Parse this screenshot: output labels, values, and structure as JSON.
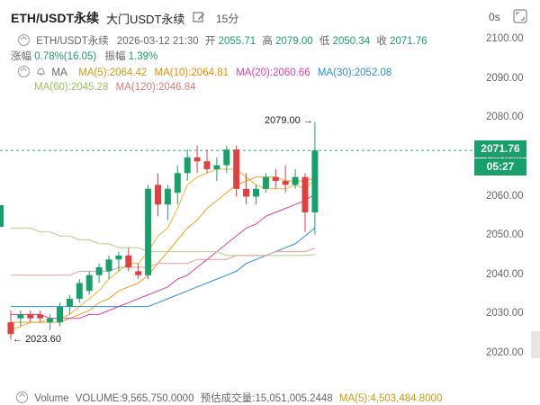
{
  "header": {
    "title": "ETH/USDT永续",
    "subtitle": "大门USDT永续",
    "interval": "15分",
    "countdown": "0s"
  },
  "ohlc": {
    "symbol": "ETH/USDT永续",
    "datetime": "2026-03-12 21:30",
    "open_label": "开",
    "open": "2055.71",
    "high_label": "高",
    "high": "2079.00",
    "low_label": "低",
    "low": "2050.34",
    "close_label": "收",
    "close": "2071.76",
    "change_label": "涨幅",
    "change": "0.78%(16.05)",
    "amplitude_label": "振幅",
    "amplitude": "1.39%"
  },
  "ma": {
    "label": "MA",
    "ma5": "MA(5):2064.42",
    "ma10": "MA(10):2064.81",
    "ma20": "MA(20):2060.66",
    "ma30": "MA(30):2052.08",
    "ma60": "MA(60):2045.28",
    "ma120": "MA(120):2046.84"
  },
  "colors": {
    "up": "#18a06a",
    "down": "#e04040",
    "ma5": "#f0b429",
    "ma10": "#f0a020",
    "ma20": "#e040a0",
    "ma30": "#2a8fd8",
    "ma60": "#b0d080",
    "ma120": "#e89a9a"
  },
  "axis": {
    "ticks": [
      "2100.00",
      "2090.00",
      "2080.00",
      "2070.00",
      "2060.00",
      "2050.00",
      "2040.00",
      "2030.00",
      "2020.00"
    ]
  },
  "last_price": "2071.76",
  "time_left": "05:27",
  "annotations": {
    "high": "2079.00",
    "low": "2023.60"
  },
  "volume": {
    "label": "Volume",
    "volume": "VOLUME:9,565,750.0000",
    "est": "预估成交量:15,051,005.2448",
    "ma5": "MA(5):4,503,484.8000"
  },
  "chart_data": {
    "type": "candlestick",
    "ylim": [
      2020,
      2100
    ],
    "candles": [
      {
        "o": 2028,
        "h": 2031,
        "l": 2023.6,
        "c": 2025
      },
      {
        "o": 2029,
        "h": 2031,
        "l": 2027,
        "c": 2030
      },
      {
        "o": 2030,
        "h": 2031,
        "l": 2028,
        "c": 2029
      },
      {
        "o": 2030,
        "h": 2031,
        "l": 2028,
        "c": 2029
      },
      {
        "o": 2028,
        "h": 2030,
        "l": 2026,
        "c": 2029
      },
      {
        "o": 2028,
        "h": 2033,
        "l": 2027,
        "c": 2032
      },
      {
        "o": 2032,
        "h": 2035,
        "l": 2030,
        "c": 2034
      },
      {
        "o": 2034,
        "h": 2039,
        "l": 2033,
        "c": 2038
      },
      {
        "o": 2036,
        "h": 2041,
        "l": 2035,
        "c": 2040
      },
      {
        "o": 2040,
        "h": 2043,
        "l": 2038,
        "c": 2042
      },
      {
        "o": 2041,
        "h": 2045,
        "l": 2039,
        "c": 2044
      },
      {
        "o": 2044,
        "h": 2046,
        "l": 2041,
        "c": 2045
      },
      {
        "o": 2045,
        "h": 2047,
        "l": 2041,
        "c": 2042
      },
      {
        "o": 2041,
        "h": 2043,
        "l": 2039,
        "c": 2040
      },
      {
        "o": 2040,
        "h": 2063,
        "l": 2039,
        "c": 2062
      },
      {
        "o": 2063,
        "h": 2066,
        "l": 2055,
        "c": 2058
      },
      {
        "o": 2058,
        "h": 2063,
        "l": 2054,
        "c": 2062
      },
      {
        "o": 2061,
        "h": 2068,
        "l": 2058,
        "c": 2066
      },
      {
        "o": 2066,
        "h": 2072,
        "l": 2064,
        "c": 2070
      },
      {
        "o": 2070,
        "h": 2073,
        "l": 2066,
        "c": 2069
      },
      {
        "o": 2069,
        "h": 2072,
        "l": 2066,
        "c": 2067
      },
      {
        "o": 2067,
        "h": 2070,
        "l": 2064,
        "c": 2068
      },
      {
        "o": 2068,
        "h": 2073,
        "l": 2066,
        "c": 2072
      },
      {
        "o": 2072,
        "h": 2073,
        "l": 2060,
        "c": 2062
      },
      {
        "o": 2062,
        "h": 2066,
        "l": 2058,
        "c": 2060
      },
      {
        "o": 2060,
        "h": 2063,
        "l": 2058,
        "c": 2062
      },
      {
        "o": 2062,
        "h": 2066,
        "l": 2061,
        "c": 2065
      },
      {
        "o": 2065,
        "h": 2067,
        "l": 2062,
        "c": 2064
      },
      {
        "o": 2064,
        "h": 2068,
        "l": 2061,
        "c": 2063
      },
      {
        "o": 2063,
        "h": 2067,
        "l": 2062,
        "c": 2065
      },
      {
        "o": 2065,
        "h": 2066,
        "l": 2051,
        "c": 2056
      },
      {
        "o": 2056,
        "h": 2079,
        "l": 2050.34,
        "c": 2071.76
      }
    ],
    "ma": {
      "ma5": [
        2026,
        2027,
        2028,
        2028,
        2029,
        2029,
        2030,
        2032,
        2034,
        2036,
        2039,
        2041,
        2043,
        2043,
        2046,
        2050,
        2052,
        2057,
        2063,
        2065,
        2066,
        2067,
        2067,
        2067,
        2065,
        2063,
        2062,
        2062,
        2062,
        2063,
        2062,
        2064.42
      ],
      "ma10": [
        2028,
        2028,
        2028,
        2028,
        2028,
        2028,
        2029,
        2030,
        2031,
        2033,
        2034,
        2036,
        2037,
        2038,
        2040,
        2043,
        2046,
        2049,
        2052,
        2054,
        2057,
        2059,
        2061,
        2063,
        2064,
        2065,
        2065,
        2065,
        2064,
        2064,
        2064,
        2064.81
      ],
      "ma20": [
        2030,
        2030,
        2030,
        2030,
        2029,
        2029,
        2029,
        2029,
        2030,
        2030,
        2031,
        2032,
        2033,
        2034,
        2035,
        2036,
        2037,
        2039,
        2040,
        2042,
        2044,
        2046,
        2048,
        2050,
        2052,
        2053,
        2055,
        2056,
        2057,
        2058,
        2059,
        2060.66
      ],
      "ma30": [
        2032,
        2032,
        2032,
        2032,
        2032,
        2032,
        2032,
        2032,
        2032,
        2032,
        2032,
        2032,
        2032,
        2032,
        2032,
        2033,
        2034,
        2035,
        2036,
        2037,
        2038,
        2039,
        2040,
        2041,
        2043,
        2044,
        2045,
        2046,
        2047,
        2048,
        2050,
        2052.08
      ],
      "ma60": [
        2052,
        2052,
        2052,
        2051,
        2051,
        2050,
        2050,
        2049,
        2049,
        2048,
        2048,
        2047,
        2047,
        2047,
        2046,
        2046,
        2046,
        2046,
        2046,
        2046,
        2046,
        2046,
        2045,
        2045,
        2045,
        2045,
        2045,
        2045,
        2045,
        2045,
        2045,
        2045.28
      ],
      "ma120": [
        2040,
        2040,
        2040,
        2040,
        2040,
        2040,
        2040,
        2041,
        2041,
        2041,
        2041,
        2042,
        2042,
        2042,
        2042,
        2043,
        2043,
        2043,
        2043,
        2044,
        2044,
        2044,
        2044,
        2045,
        2045,
        2045,
        2045,
        2046,
        2046,
        2046,
        2046,
        2046.84
      ]
    }
  }
}
